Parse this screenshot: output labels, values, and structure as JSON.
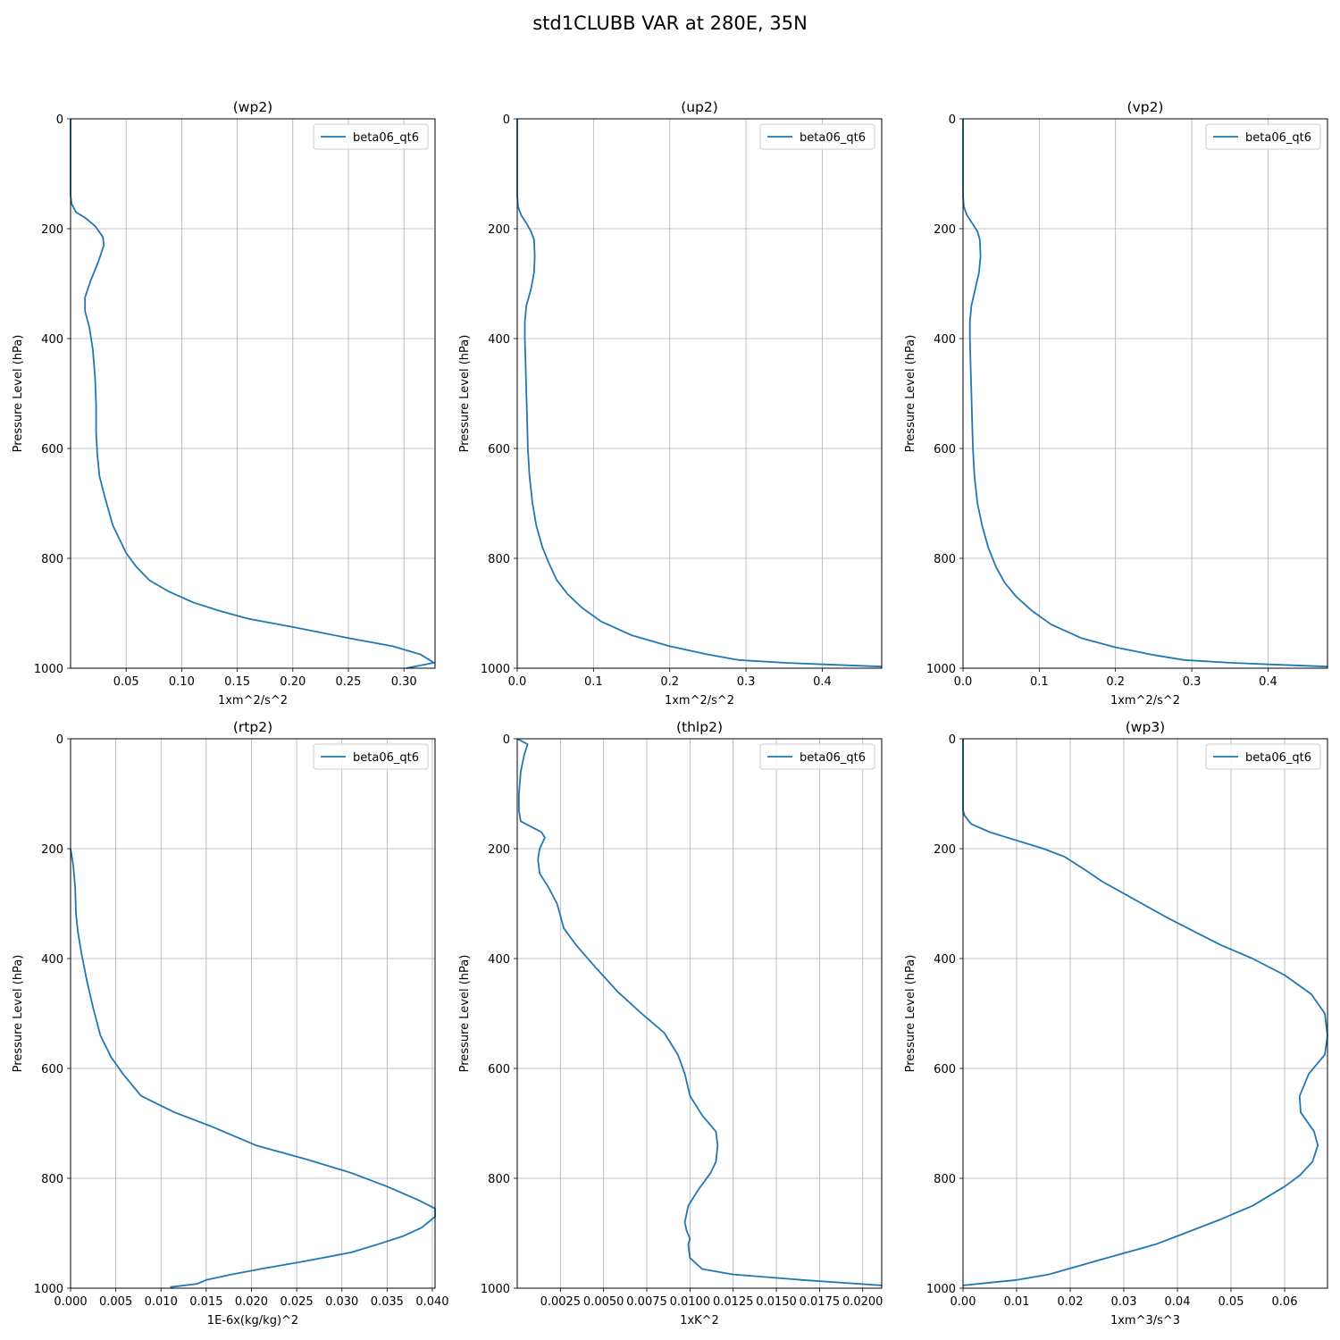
{
  "figure": {
    "title": "std1CLUBB VAR at 280E, 35N"
  },
  "chart_data": [
    {
      "type": "line",
      "title": "(wp2)",
      "xlabel": "1xm^2/s^2",
      "ylabel": "Pressure Level (hPa)",
      "xlim": [
        0.0,
        0.328
      ],
      "ylim": [
        1000,
        0
      ],
      "y_inverted": true,
      "xticks": [
        0.05,
        0.1,
        0.15,
        0.2,
        0.25,
        0.3
      ],
      "xtick_labels": [
        "0.05",
        "0.10",
        "0.15",
        "0.20",
        "0.25",
        "0.30"
      ],
      "yticks": [
        0,
        200,
        400,
        600,
        800,
        1000
      ],
      "grid": true,
      "legend": "top-right",
      "series": [
        {
          "name": "beta06_qt6",
          "color": "#1f77b4",
          "x": [
            0,
            0,
            0.001,
            0.005,
            0.013,
            0.022,
            0.029,
            0.03,
            0.025,
            0.018,
            0.013,
            0.013,
            0.017,
            0.02,
            0.022,
            0.023,
            0.023,
            0.024,
            0.026,
            0.031,
            0.038,
            0.05,
            0.059,
            0.071,
            0.088,
            0.11,
            0.133,
            0.16,
            0.2,
            0.25,
            0.29,
            0.315,
            0.323,
            0.327,
            0.302
          ],
          "y": [
            0,
            140,
            155,
            170,
            180,
            195,
            215,
            230,
            260,
            295,
            325,
            350,
            380,
            420,
            470,
            520,
            570,
            610,
            650,
            690,
            740,
            790,
            815,
            840,
            860,
            880,
            895,
            910,
            925,
            945,
            960,
            975,
            985,
            990,
            1000
          ]
        }
      ]
    },
    {
      "type": "line",
      "title": "(up2)",
      "xlabel": "1xm^2/s^2",
      "ylabel": "Pressure Level (hPa)",
      "xlim": [
        0.0,
        0.478
      ],
      "ylim": [
        1000,
        0
      ],
      "y_inverted": true,
      "xticks": [
        0.0,
        0.1,
        0.2,
        0.3,
        0.4
      ],
      "xtick_labels": [
        "0.0",
        "0.1",
        "0.2",
        "0.3",
        "0.4"
      ],
      "yticks": [
        0,
        200,
        400,
        600,
        800,
        1000
      ],
      "grid": true,
      "legend": "top-right",
      "series": [
        {
          "name": "beta06_qt6",
          "color": "#1f77b4",
          "x": [
            0,
            0,
            0.001,
            0.005,
            0.012,
            0.018,
            0.022,
            0.023,
            0.022,
            0.018,
            0.012,
            0.01,
            0.01,
            0.011,
            0.012,
            0.013,
            0.014,
            0.016,
            0.02,
            0.025,
            0.033,
            0.042,
            0.052,
            0.066,
            0.085,
            0.11,
            0.15,
            0.2,
            0.25,
            0.29,
            0.35,
            0.42,
            0.478
          ],
          "y": [
            0,
            140,
            160,
            175,
            190,
            205,
            220,
            250,
            280,
            310,
            340,
            370,
            400,
            450,
            500,
            550,
            600,
            650,
            700,
            740,
            780,
            810,
            840,
            865,
            890,
            915,
            940,
            960,
            975,
            985,
            990,
            994,
            997
          ]
        }
      ]
    },
    {
      "type": "line",
      "title": "(vp2)",
      "xlabel": "1xm^2/s^2",
      "ylabel": "Pressure Level (hPa)",
      "xlim": [
        0.0,
        0.478
      ],
      "ylim": [
        1000,
        0
      ],
      "y_inverted": true,
      "xticks": [
        0.0,
        0.1,
        0.2,
        0.3,
        0.4
      ],
      "xtick_labels": [
        "0.0",
        "0.1",
        "0.2",
        "0.3",
        "0.4"
      ],
      "yticks": [
        0,
        200,
        400,
        600,
        800,
        1000
      ],
      "grid": true,
      "legend": "top-right",
      "series": [
        {
          "name": "beta06_qt6",
          "color": "#1f77b4",
          "x": [
            0,
            0,
            0.001,
            0.005,
            0.012,
            0.019,
            0.022,
            0.023,
            0.021,
            0.016,
            0.011,
            0.009,
            0.009,
            0.01,
            0.011,
            0.012,
            0.013,
            0.015,
            0.019,
            0.025,
            0.033,
            0.043,
            0.055,
            0.07,
            0.09,
            0.115,
            0.155,
            0.2,
            0.25,
            0.29,
            0.35,
            0.42,
            0.478
          ],
          "y": [
            0,
            140,
            160,
            175,
            190,
            205,
            220,
            250,
            280,
            310,
            340,
            370,
            400,
            450,
            500,
            550,
            600,
            650,
            700,
            740,
            780,
            815,
            845,
            870,
            895,
            920,
            945,
            962,
            976,
            985,
            990,
            994,
            997
          ]
        }
      ]
    },
    {
      "type": "line",
      "title": "(rtp2)",
      "xlabel": "1E-6x(kg/kg)^2",
      "ylabel": "Pressure Level (hPa)",
      "xlim": [
        0.0,
        0.0403
      ],
      "ylim": [
        1000,
        0
      ],
      "y_inverted": true,
      "xticks": [
        0.0,
        0.005,
        0.01,
        0.015,
        0.02,
        0.025,
        0.03,
        0.035,
        0.04
      ],
      "xtick_labels": [
        "0.000",
        "0.005",
        "0.010",
        "0.015",
        "0.020",
        "0.025",
        "0.030",
        "0.035",
        "0.040"
      ],
      "yticks": [
        0,
        200,
        400,
        600,
        800,
        1000
      ],
      "grid": true,
      "legend": "top-right",
      "series": [
        {
          "name": "beta06_qt6",
          "color": "#1f77b4",
          "x": [
            0,
            0.0003,
            0.0005,
            0.0006,
            0.0008,
            0.0012,
            0.0018,
            0.0025,
            0.0033,
            0.0045,
            0.0058,
            0.0078,
            0.0115,
            0.0155,
            0.0205,
            0.026,
            0.031,
            0.035,
            0.0385,
            0.0403,
            0.0403,
            0.0388,
            0.0368,
            0.034,
            0.031,
            0.0262,
            0.021,
            0.0178,
            0.015,
            0.014,
            0.011
          ],
          "y": [
            200,
            230,
            270,
            320,
            350,
            390,
            440,
            490,
            540,
            580,
            610,
            650,
            680,
            705,
            740,
            765,
            790,
            815,
            840,
            855,
            870,
            890,
            905,
            920,
            935,
            950,
            965,
            975,
            985,
            992,
            998
          ]
        }
      ]
    },
    {
      "type": "line",
      "title": "(thlp2)",
      "xlabel": "1xK^2",
      "ylabel": "Pressure Level (hPa)",
      "xlim": [
        0.0,
        0.0211
      ],
      "ylim": [
        1000,
        0
      ],
      "y_inverted": true,
      "xticks": [
        0.0025,
        0.005,
        0.0075,
        0.01,
        0.0125,
        0.015,
        0.0175,
        0.02
      ],
      "xtick_labels": [
        "0.0025",
        "0.0050",
        "0.0075",
        "0.0100",
        "0.0125",
        "0.0150",
        "0.0175",
        "0.0200"
      ],
      "yticks": [
        0,
        200,
        400,
        600,
        800,
        1000
      ],
      "grid": true,
      "legend": "top-right",
      "series": [
        {
          "name": "beta06_qt6",
          "color": "#1f77b4",
          "x": [
            0.0,
            0.0006,
            0.0004,
            0.0002,
            0.0001,
            0.0001,
            0.0002,
            0.0008,
            0.0014,
            0.0016,
            0.0013,
            0.0012,
            0.0013,
            0.0018,
            0.0023,
            0.0027,
            0.0034,
            0.0045,
            0.0058,
            0.0072,
            0.0085,
            0.0093,
            0.0097,
            0.01,
            0.0107,
            0.0115,
            0.0116,
            0.0115,
            0.0112,
            0.0105,
            0.0099,
            0.0097,
            0.0098,
            0.01,
            0.0099,
            0.01,
            0.0107,
            0.0125,
            0.0165,
            0.0211
          ],
          "y": [
            0,
            10,
            30,
            60,
            100,
            130,
            150,
            160,
            170,
            180,
            200,
            220,
            245,
            270,
            300,
            345,
            375,
            415,
            460,
            500,
            535,
            575,
            610,
            650,
            685,
            715,
            740,
            770,
            790,
            820,
            850,
            880,
            895,
            910,
            920,
            945,
            965,
            975,
            985,
            995
          ]
        }
      ]
    },
    {
      "type": "line",
      "title": "(wp3)",
      "xlabel": "1xm^3/s^3",
      "ylabel": "Pressure Level (hPa)",
      "xlim": [
        0.0,
        0.068
      ],
      "ylim": [
        1000,
        0
      ],
      "y_inverted": true,
      "xticks": [
        0.0,
        0.01,
        0.02,
        0.03,
        0.04,
        0.05,
        0.06
      ],
      "xtick_labels": [
        "0.00",
        "0.01",
        "0.02",
        "0.03",
        "0.04",
        "0.05",
        "0.06"
      ],
      "yticks": [
        0,
        200,
        400,
        600,
        800,
        1000
      ],
      "grid": true,
      "legend": "top-right",
      "series": [
        {
          "name": "beta06_qt6",
          "color": "#1f77b4",
          "x": [
            0,
            0,
            0.0003,
            0.0015,
            0.005,
            0.01,
            0.015,
            0.019,
            0.023,
            0.026,
            0.038,
            0.043,
            0.048,
            0.054,
            0.06,
            0.065,
            0.0675,
            0.068,
            0.0675,
            0.0645,
            0.0628,
            0.063,
            0.0655,
            0.0662,
            0.0652,
            0.0628,
            0.06,
            0.054,
            0.048,
            0.04,
            0.036,
            0.025,
            0.016,
            0.01,
            0.005,
            0.0
          ],
          "y": [
            0,
            130,
            140,
            155,
            170,
            185,
            200,
            215,
            240,
            260,
            325,
            350,
            375,
            400,
            430,
            465,
            500,
            540,
            575,
            610,
            650,
            680,
            715,
            740,
            770,
            795,
            815,
            850,
            875,
            905,
            920,
            950,
            975,
            985,
            990,
            995
          ]
        }
      ]
    }
  ]
}
